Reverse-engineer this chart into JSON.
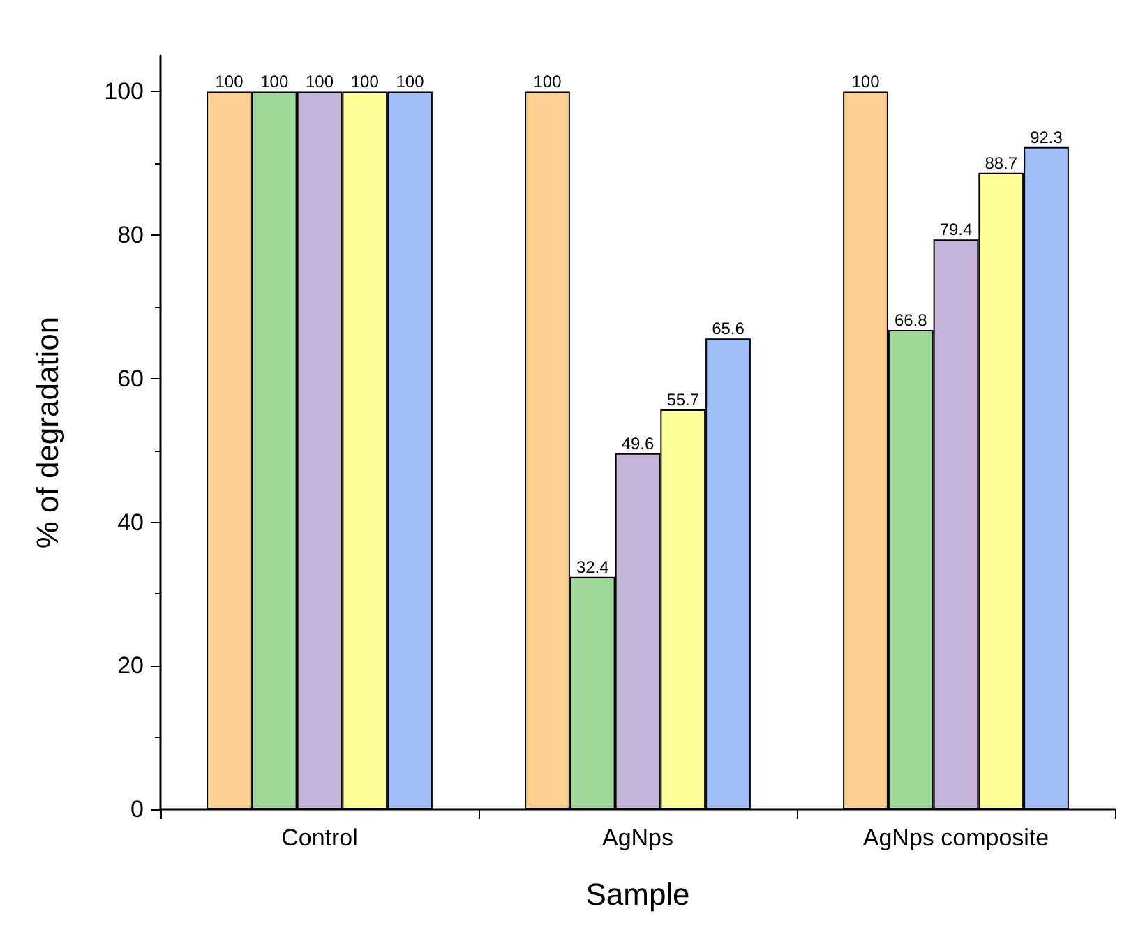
{
  "chart_data": {
    "type": "bar",
    "xlabel": "Sample",
    "ylabel": "% of degradation",
    "categories": [
      "Control",
      "AgNps",
      "AgNps composite"
    ],
    "series": [
      {
        "color": "#ffd08f",
        "values": [
          100,
          100,
          100
        ]
      },
      {
        "color": "#9fd99a",
        "values": [
          100,
          32.4,
          66.8
        ]
      },
      {
        "color": "#c4b4d8",
        "values": [
          100,
          49.6,
          79.4
        ]
      },
      {
        "color": "#ffff99",
        "values": [
          100,
          55.7,
          88.7
        ]
      },
      {
        "color": "#a0bef8",
        "values": [
          100,
          65.6,
          92.3
        ]
      }
    ],
    "ylim": [
      0,
      105
    ],
    "yticks": [
      0,
      20,
      40,
      60,
      80,
      100
    ],
    "grid": false,
    "data_labels": true
  }
}
